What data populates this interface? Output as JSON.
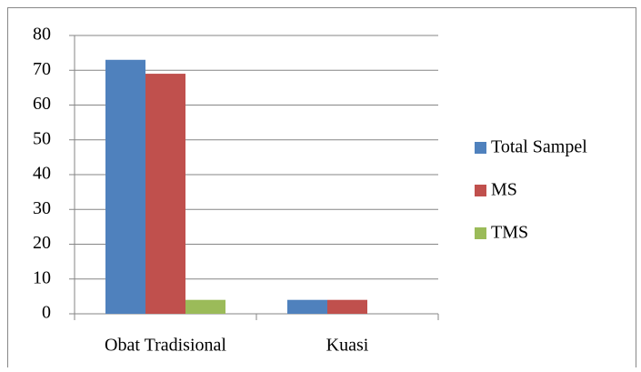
{
  "chart_data": {
    "type": "bar",
    "categories": [
      "Obat Tradisional",
      "Kuasi"
    ],
    "series": [
      {
        "name": "Total Sampel",
        "color": "#4f81bd",
        "values": [
          73,
          4
        ]
      },
      {
        "name": "MS",
        "color": "#c0504d",
        "values": [
          69,
          4
        ]
      },
      {
        "name": "TMS",
        "color": "#9bbb59",
        "values": [
          4,
          0
        ]
      }
    ],
    "ylim": [
      0,
      80
    ],
    "yticks": [
      0,
      10,
      20,
      30,
      40,
      50,
      60,
      70,
      80
    ],
    "grid": true,
    "legend": "right"
  }
}
